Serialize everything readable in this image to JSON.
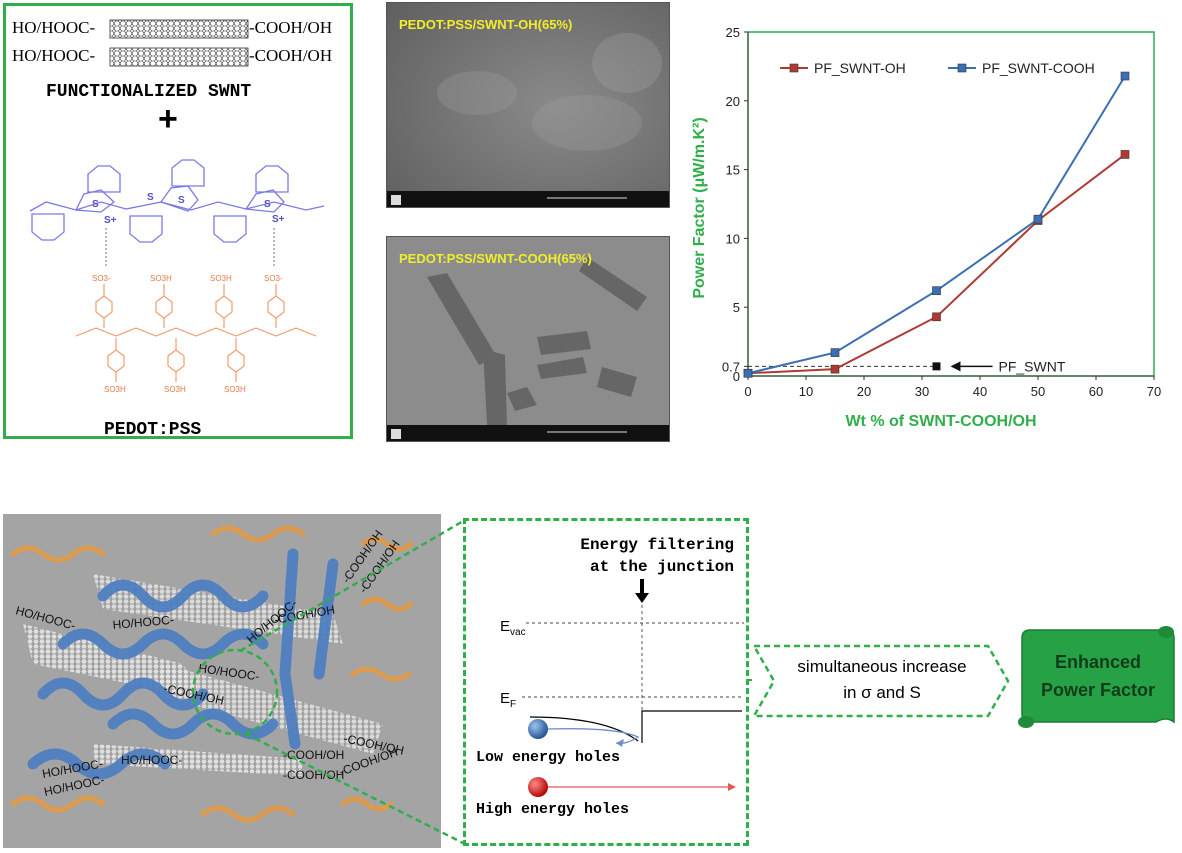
{
  "top_left": {
    "swnt_line1_left": "HO/HOOC-",
    "swnt_line1_right": "-COOH/OH",
    "swnt_line2_left": "HO/HOOC-",
    "swnt_line2_right": "-COOH/OH",
    "functionalized_label": "FUNCTIONALIZED SWNT",
    "plus": "+",
    "atom_s": "S",
    "atom_s_plus": "S+",
    "so3": "SO3-",
    "so3h": "SO3H",
    "pedot_label": "PEDOT:PSS"
  },
  "sem": {
    "top_label": "PEDOT:PSS/SWNT-OH(65%)",
    "bottom_label": "PEDOT:PSS/SWNT-COOH(65%)"
  },
  "chart_data": {
    "type": "line",
    "xlabel": "Wt % of SWNT-COOH/OH",
    "ylabel": "Power Factor (μW/m.K²)",
    "xlim": [
      0,
      70
    ],
    "ylim": [
      0,
      25
    ],
    "xticks": [
      "0",
      "10",
      "20",
      "30",
      "40",
      "50",
      "60",
      "70"
    ],
    "yticks": [
      "0",
      "0.7",
      "5",
      "10",
      "15",
      "20",
      "25"
    ],
    "ytick_values": [
      0,
      0.7,
      5,
      10,
      15,
      20,
      25
    ],
    "series": [
      {
        "name": "PF_SWNT-OH",
        "color": "#b03a33",
        "x": [
          0,
          15,
          32.5,
          50,
          65
        ],
        "y": [
          0.2,
          0.5,
          4.3,
          11.3,
          16.1
        ]
      },
      {
        "name": "PF_SWNT-COOH",
        "color": "#3a6fb5",
        "x": [
          0,
          15,
          32.5,
          50,
          65
        ],
        "y": [
          0.2,
          1.7,
          6.2,
          11.4,
          21.8
        ]
      }
    ],
    "reference": {
      "label": "PF_SWNT",
      "x": 32.5,
      "y": 0.7
    },
    "legend": "top"
  },
  "bottom": {
    "chain_labels": [
      "HO/HOOC-",
      "HO/HOOC-",
      "HO/HOOC-",
      "HO/HOOC-",
      "HO/HOOC-",
      "HO/HOOC-",
      "HO/HOOC-"
    ],
    "end_labels": [
      "-COOH/OH",
      "-COOH/OH",
      "-COOH/OH",
      "-COOH/OH",
      "-COOH/OH",
      "-COOH/OH",
      "-COOH/OH",
      "-COOH/OH"
    ],
    "energy_title_1": "Energy filtering",
    "energy_title_2": "at the junction",
    "evac_main": "E",
    "evac_sub": "vac",
    "ef_main": "E",
    "ef_sub": "F",
    "low_holes": "Low energy holes",
    "high_holes": "High energy holes",
    "increase_1": "simultaneous increase",
    "increase_2": "in σ and S",
    "enhanced_1": "Enhanced",
    "enhanced_2": "Power Factor"
  },
  "colors": {
    "green": "#2fae4a",
    "pedot": "#7a7ae6",
    "pss": "#f09d6e",
    "ribbon_blue": "#4f7fc0",
    "ribbon_orange": "#e39a45",
    "sem_label": "#f2ee2a"
  }
}
